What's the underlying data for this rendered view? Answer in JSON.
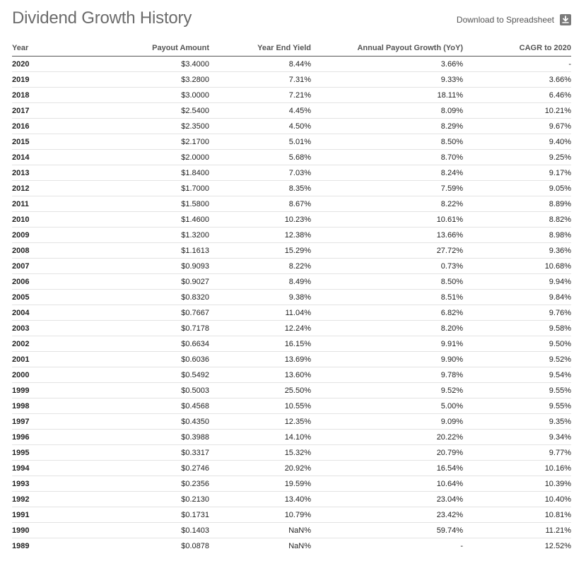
{
  "title": "Dividend Growth History",
  "download_label": "Download to Spreadsheet",
  "icons": {
    "download": "download-icon"
  },
  "table": {
    "headers": [
      "Year",
      "Payout Amount",
      "Year End Yield",
      "Annual Payout Growth (YoY)",
      "CAGR to 2020"
    ],
    "rows": [
      [
        "2020",
        "$3.4000",
        "8.44%",
        "3.66%",
        "-"
      ],
      [
        "2019",
        "$3.2800",
        "7.31%",
        "9.33%",
        "3.66%"
      ],
      [
        "2018",
        "$3.0000",
        "7.21%",
        "18.11%",
        "6.46%"
      ],
      [
        "2017",
        "$2.5400",
        "4.45%",
        "8.09%",
        "10.21%"
      ],
      [
        "2016",
        "$2.3500",
        "4.50%",
        "8.29%",
        "9.67%"
      ],
      [
        "2015",
        "$2.1700",
        "5.01%",
        "8.50%",
        "9.40%"
      ],
      [
        "2014",
        "$2.0000",
        "5.68%",
        "8.70%",
        "9.25%"
      ],
      [
        "2013",
        "$1.8400",
        "7.03%",
        "8.24%",
        "9.17%"
      ],
      [
        "2012",
        "$1.7000",
        "8.35%",
        "7.59%",
        "9.05%"
      ],
      [
        "2011",
        "$1.5800",
        "8.67%",
        "8.22%",
        "8.89%"
      ],
      [
        "2010",
        "$1.4600",
        "10.23%",
        "10.61%",
        "8.82%"
      ],
      [
        "2009",
        "$1.3200",
        "12.38%",
        "13.66%",
        "8.98%"
      ],
      [
        "2008",
        "$1.1613",
        "15.29%",
        "27.72%",
        "9.36%"
      ],
      [
        "2007",
        "$0.9093",
        "8.22%",
        "0.73%",
        "10.68%"
      ],
      [
        "2006",
        "$0.9027",
        "8.49%",
        "8.50%",
        "9.94%"
      ],
      [
        "2005",
        "$0.8320",
        "9.38%",
        "8.51%",
        "9.84%"
      ],
      [
        "2004",
        "$0.7667",
        "11.04%",
        "6.82%",
        "9.76%"
      ],
      [
        "2003",
        "$0.7178",
        "12.24%",
        "8.20%",
        "9.58%"
      ],
      [
        "2002",
        "$0.6634",
        "16.15%",
        "9.91%",
        "9.50%"
      ],
      [
        "2001",
        "$0.6036",
        "13.69%",
        "9.90%",
        "9.52%"
      ],
      [
        "2000",
        "$0.5492",
        "13.60%",
        "9.78%",
        "9.54%"
      ],
      [
        "1999",
        "$0.5003",
        "25.50%",
        "9.52%",
        "9.55%"
      ],
      [
        "1998",
        "$0.4568",
        "10.55%",
        "5.00%",
        "9.55%"
      ],
      [
        "1997",
        "$0.4350",
        "12.35%",
        "9.09%",
        "9.35%"
      ],
      [
        "1996",
        "$0.3988",
        "14.10%",
        "20.22%",
        "9.34%"
      ],
      [
        "1995",
        "$0.3317",
        "15.32%",
        "20.79%",
        "9.77%"
      ],
      [
        "1994",
        "$0.2746",
        "20.92%",
        "16.54%",
        "10.16%"
      ],
      [
        "1993",
        "$0.2356",
        "19.59%",
        "10.64%",
        "10.39%"
      ],
      [
        "1992",
        "$0.2130",
        "13.40%",
        "23.04%",
        "10.40%"
      ],
      [
        "1991",
        "$0.1731",
        "10.79%",
        "23.42%",
        "10.81%"
      ],
      [
        "1990",
        "$0.1403",
        "NaN%",
        "59.74%",
        "11.21%"
      ],
      [
        "1989",
        "$0.0878",
        "NaN%",
        "-",
        "12.52%"
      ]
    ]
  }
}
